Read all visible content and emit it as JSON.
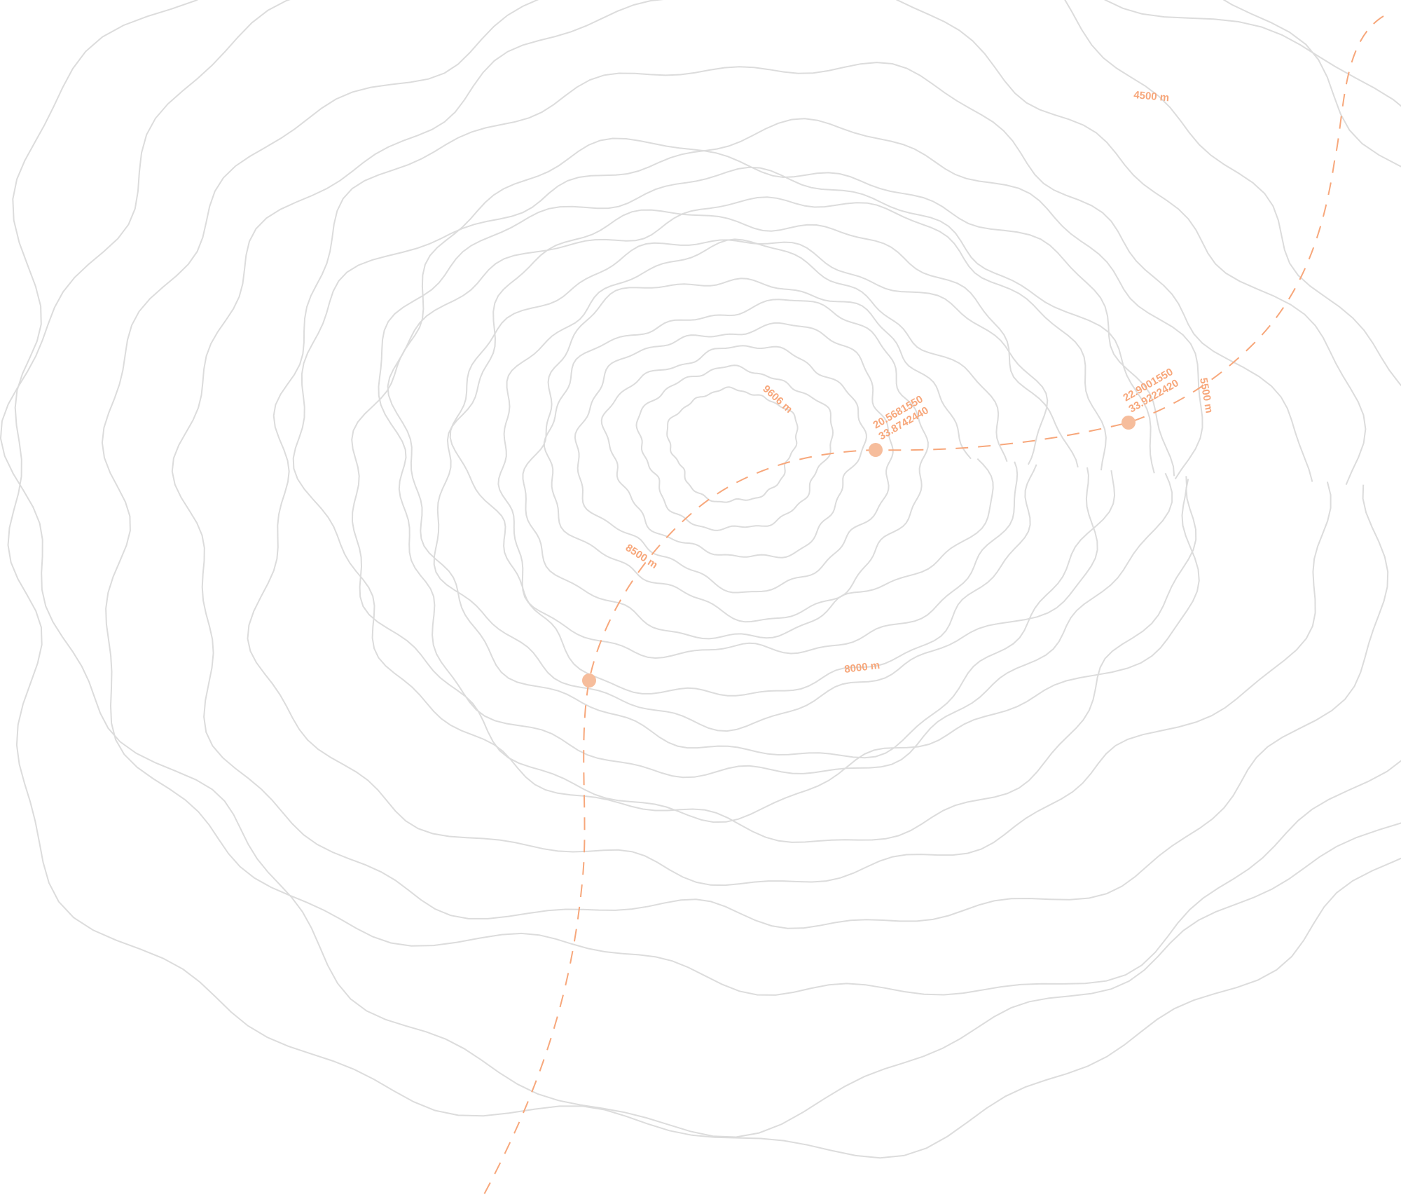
{
  "colors": {
    "accent": "#f7a77b",
    "marker": "#f6bd9c",
    "contour": "#dcdcdc",
    "background": "#ffffff"
  },
  "elevation_labels": [
    {
      "text": "9606 m"
    },
    {
      "text": "8500 m"
    },
    {
      "text": "8000 m"
    },
    {
      "text": "5500 m"
    },
    {
      "text": "4500 m"
    }
  ],
  "waypoints": [
    {
      "lat": "20.5681550",
      "lon": "33.8742440"
    },
    {
      "lat": "22.9001550",
      "lon": "33.9222420"
    },
    {
      "lat": "",
      "lon": ""
    }
  ]
}
